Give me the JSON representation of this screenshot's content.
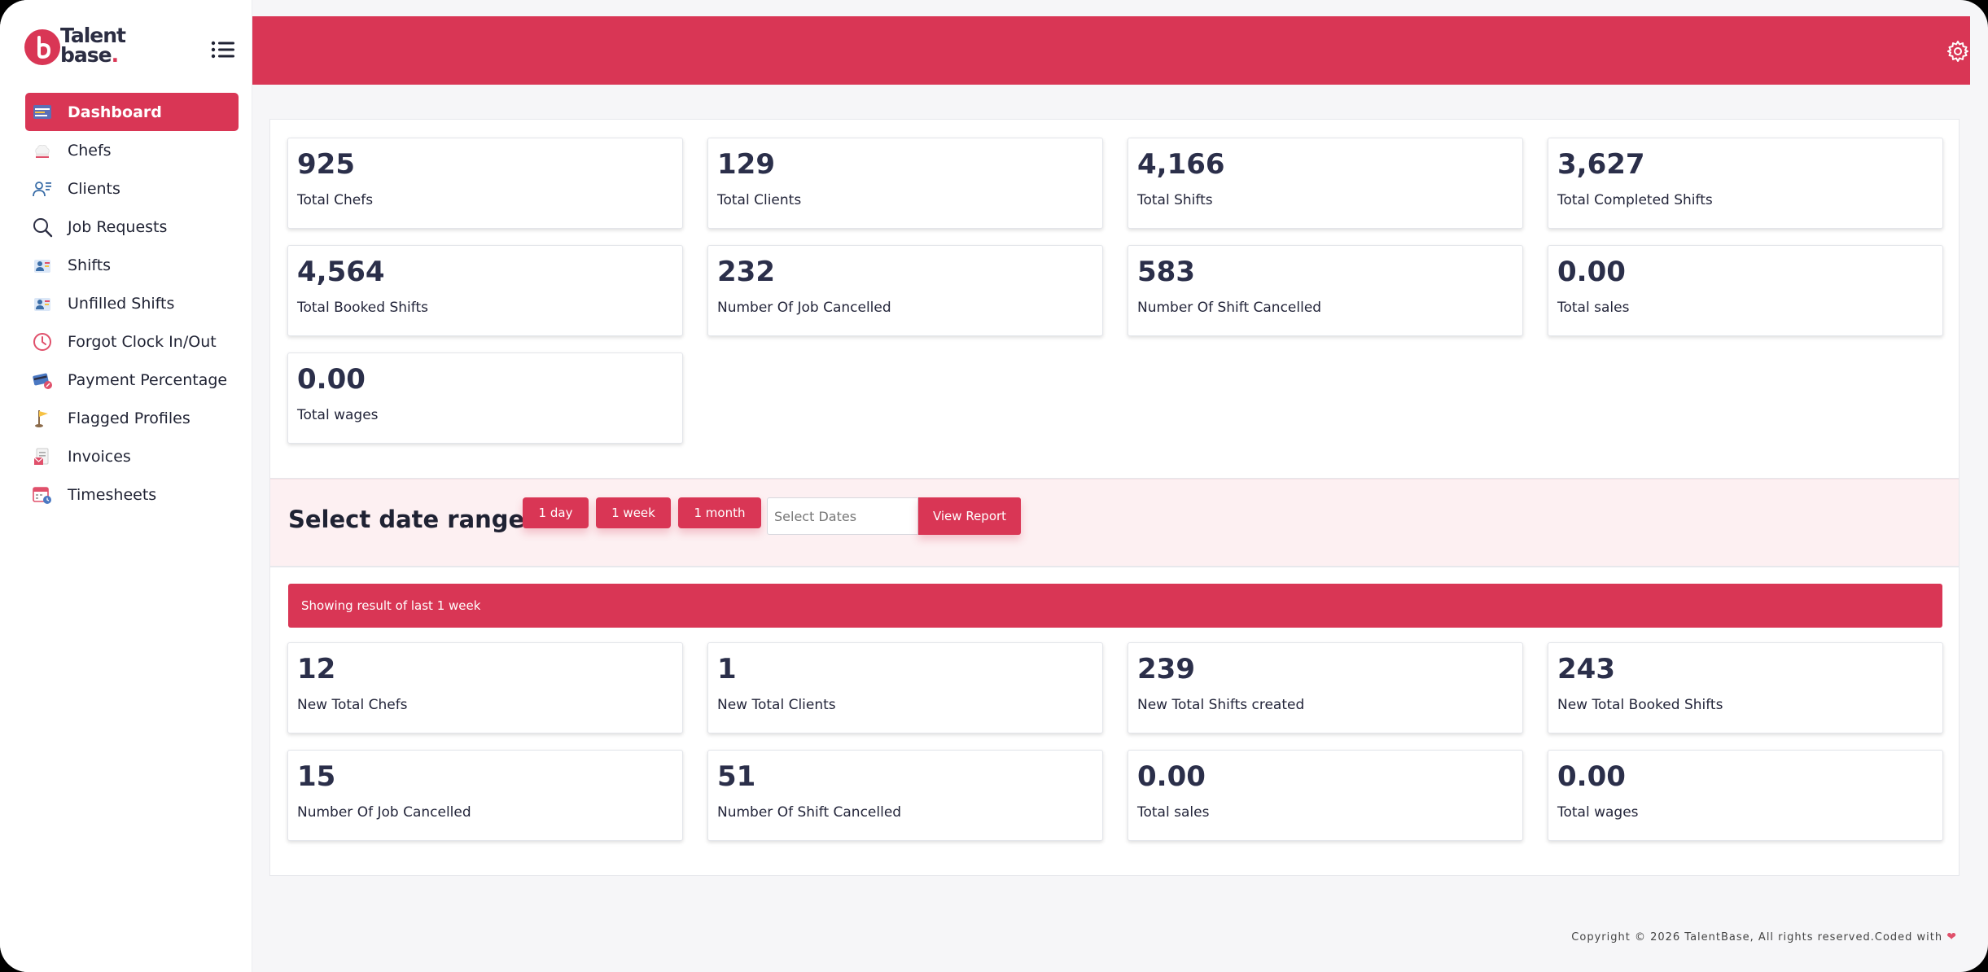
{
  "brand": {
    "line1": "Talent",
    "line2": "base",
    "dot": "."
  },
  "sidebar": {
    "items": [
      {
        "label": "Dashboard",
        "icon": "dashboard-icon"
      },
      {
        "label": "Chefs",
        "icon": "chef-hat-icon"
      },
      {
        "label": "Clients",
        "icon": "clients-icon"
      },
      {
        "label": "Job Requests",
        "icon": "search-icon"
      },
      {
        "label": "Shifts",
        "icon": "shifts-icon"
      },
      {
        "label": "Unfilled Shifts",
        "icon": "unfilled-shifts-icon"
      },
      {
        "label": "Forgot Clock In/Out",
        "icon": "clock-icon"
      },
      {
        "label": "Payment Percentage",
        "icon": "payment-card-icon"
      },
      {
        "label": "Flagged Profiles",
        "icon": "flag-icon"
      },
      {
        "label": "Invoices",
        "icon": "invoice-icon"
      },
      {
        "label": "Timesheets",
        "icon": "calendar-clock-icon"
      }
    ]
  },
  "stats": [
    {
      "value": "925",
      "label": "Total Chefs"
    },
    {
      "value": "129",
      "label": "Total Clients"
    },
    {
      "value": "4,166",
      "label": "Total Shifts"
    },
    {
      "value": "3,627",
      "label": "Total Completed Shifts"
    },
    {
      "value": "4,564",
      "label": "Total Booked Shifts"
    },
    {
      "value": "232",
      "label": "Number Of Job Cancelled"
    },
    {
      "value": "583",
      "label": "Number Of Shift Cancelled"
    },
    {
      "value": "0.00",
      "label": "Total sales"
    },
    {
      "value": "0.00",
      "label": "Total wages"
    }
  ],
  "range": {
    "title": "Select date range",
    "btn_day": "1 day",
    "btn_week": "1 week",
    "btn_month": "1 month",
    "date_placeholder": "Select Dates",
    "view_report": "View Report"
  },
  "result_banner": "Showing result of last 1 week",
  "period_stats": [
    {
      "value": "12",
      "label": "New Total Chefs"
    },
    {
      "value": "1",
      "label": "New Total Clients"
    },
    {
      "value": "239",
      "label": "New Total Shifts created"
    },
    {
      "value": "243",
      "label": "New Total Booked Shifts"
    },
    {
      "value": "15",
      "label": "Number Of Job Cancelled"
    },
    {
      "value": "51",
      "label": "Number Of Shift Cancelled"
    },
    {
      "value": "0.00",
      "label": "Total sales"
    },
    {
      "value": "0.00",
      "label": "Total wages"
    }
  ],
  "footer": {
    "text": "Copyright © 2026 TalentBase, All rights reserved.Coded with",
    "heart": "❤"
  },
  "colors": {
    "accent": "#d93655",
    "text": "#2b2d42",
    "background": "#f6f6f8"
  }
}
